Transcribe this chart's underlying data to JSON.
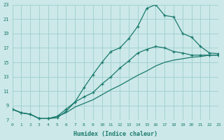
{
  "xlabel": "Humidex (Indice chaleur)",
  "xlim": [
    0,
    23
  ],
  "ylim": [
    7,
    23
  ],
  "yticks": [
    7,
    9,
    11,
    13,
    15,
    17,
    19,
    21,
    23
  ],
  "xticks": [
    0,
    1,
    2,
    3,
    4,
    5,
    6,
    7,
    8,
    9,
    10,
    11,
    12,
    13,
    14,
    15,
    16,
    17,
    18,
    19,
    20,
    21,
    22,
    23
  ],
  "bg_color": "#cce8e8",
  "grid_color": "#9ecece",
  "line_color": "#1a7a6e",
  "line1_x": [
    0,
    1,
    2,
    3,
    4,
    5,
    6,
    7,
    8,
    9,
    10,
    11,
    12,
    13,
    14,
    15,
    16,
    17,
    18,
    19,
    20,
    21,
    22,
    23
  ],
  "line1_y": [
    8.5,
    8.0,
    7.8,
    7.2,
    7.2,
    7.3,
    8.2,
    9.5,
    11.5,
    13.3,
    15.0,
    16.5,
    17.0,
    18.3,
    20.0,
    22.5,
    23.0,
    21.5,
    21.3,
    19.0,
    18.5,
    17.2,
    16.3,
    16.2
  ],
  "line2_x": [
    0,
    1,
    2,
    3,
    4,
    5,
    6,
    7,
    8,
    9,
    10,
    11,
    12,
    13,
    14,
    15,
    16,
    17,
    18,
    19,
    20,
    21,
    22,
    23
  ],
  "line2_y": [
    8.5,
    8.0,
    7.8,
    7.2,
    7.2,
    7.5,
    8.5,
    9.5,
    10.2,
    10.8,
    12.0,
    13.0,
    14.2,
    15.2,
    16.3,
    16.8,
    17.2,
    17.0,
    16.5,
    16.3,
    16.0,
    16.0,
    16.0,
    16.0
  ],
  "line3_x": [
    0,
    1,
    2,
    3,
    4,
    5,
    6,
    7,
    8,
    9,
    10,
    11,
    12,
    13,
    14,
    15,
    16,
    17,
    18,
    19,
    20,
    21,
    22,
    23
  ],
  "line3_y": [
    8.5,
    8.0,
    7.8,
    7.2,
    7.2,
    7.5,
    8.0,
    8.8,
    9.3,
    9.8,
    10.5,
    11.2,
    11.8,
    12.5,
    13.2,
    13.8,
    14.5,
    15.0,
    15.3,
    15.5,
    15.7,
    15.8,
    16.0,
    16.0
  ]
}
